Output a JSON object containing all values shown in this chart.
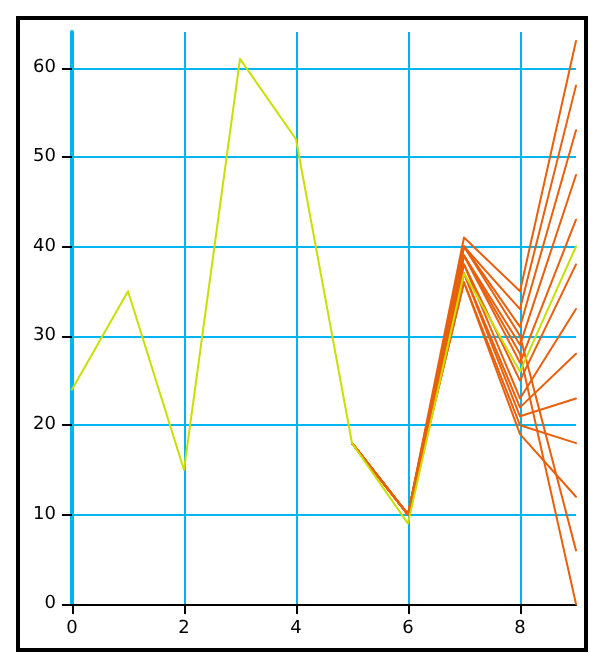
{
  "chart_data": {
    "type": "line",
    "x": [
      0,
      1,
      2,
      3,
      4,
      5,
      6,
      7,
      8,
      9
    ],
    "xlim": [
      0,
      9
    ],
    "xticks": [
      0,
      2,
      4,
      6,
      8
    ],
    "ylim": [
      0,
      64
    ],
    "yticks": [
      0,
      10,
      20,
      30,
      40,
      50,
      60
    ],
    "grid": true,
    "marker": "none",
    "line_style": "solid",
    "series": [
      {
        "color": "#e85f0c",
        "values": [
          null,
          null,
          null,
          null,
          null,
          18,
          10,
          41,
          35,
          63
        ]
      },
      {
        "color": "#e85f0c",
        "values": [
          null,
          null,
          null,
          null,
          null,
          18,
          10,
          40,
          33,
          58
        ]
      },
      {
        "color": "#e85f0c",
        "values": [
          null,
          null,
          null,
          null,
          null,
          18,
          10,
          40,
          31,
          53
        ]
      },
      {
        "color": "#e85f0c",
        "values": [
          null,
          null,
          null,
          null,
          null,
          18,
          10,
          39,
          29,
          48
        ]
      },
      {
        "color": "#e85f0c",
        "values": [
          null,
          null,
          null,
          null,
          null,
          18,
          10,
          39,
          27,
          43
        ]
      },
      {
        "color": "#e85f0c",
        "values": [
          null,
          null,
          null,
          null,
          null,
          18,
          10,
          38,
          25,
          38
        ]
      },
      {
        "color": "#e85f0c",
        "values": [
          null,
          null,
          null,
          null,
          null,
          18,
          10,
          38,
          23,
          33
        ]
      },
      {
        "color": "#e85f0c",
        "values": [
          null,
          null,
          null,
          null,
          null,
          18,
          10,
          37,
          22,
          28
        ]
      },
      {
        "color": "#e85f0c",
        "values": [
          null,
          null,
          null,
          null,
          null,
          18,
          10,
          37,
          21,
          23
        ]
      },
      {
        "color": "#e85f0c",
        "values": [
          null,
          null,
          null,
          null,
          null,
          18,
          10,
          36,
          20,
          18
        ]
      },
      {
        "color": "#e85f0c",
        "values": [
          null,
          null,
          null,
          null,
          null,
          18,
          10,
          36,
          19,
          12
        ]
      },
      {
        "color": "#e85f0c",
        "values": [
          null,
          null,
          null,
          null,
          null,
          18,
          10,
          40,
          30,
          6
        ]
      },
      {
        "color": "#e85f0c",
        "values": [
          null,
          null,
          null,
          null,
          null,
          18,
          10,
          39,
          28,
          0
        ]
      },
      {
        "color": "#c8e000",
        "values": [
          24,
          35,
          15,
          61,
          52,
          18,
          9,
          37,
          26,
          40
        ]
      }
    ]
  }
}
